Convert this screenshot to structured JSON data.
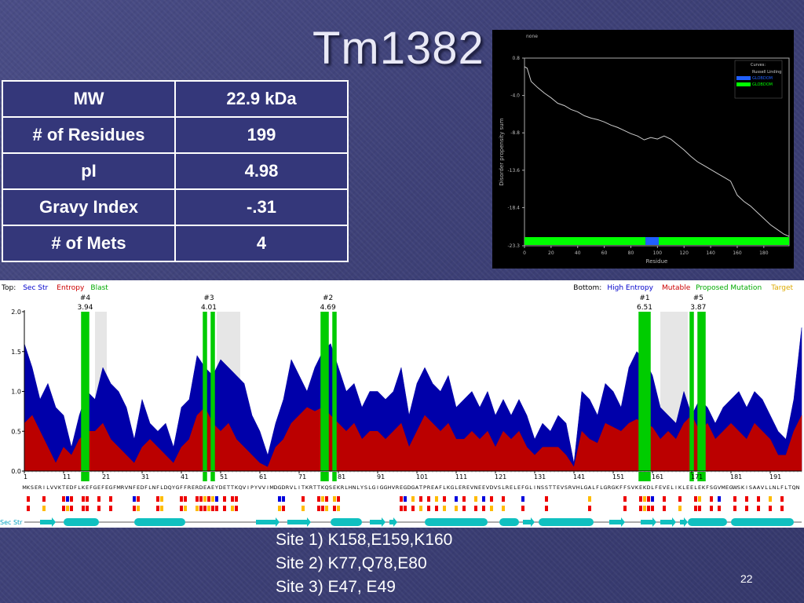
{
  "slide": {
    "title": "Tm1382",
    "page_number": "22",
    "sites": [
      "Site 1) K158,E159,K160",
      "Site 2) K77,Q78,E80",
      "Site 3) E47, E49"
    ]
  },
  "properties_table": [
    {
      "label": "MW",
      "value": "22.9 kDa"
    },
    {
      "label": "# of Residues",
      "value": "199"
    },
    {
      "label": "pI",
      "value": "4.98"
    },
    {
      "label": "Gravy Index",
      "value": "-.31"
    },
    {
      "label": "# of Mets",
      "value": "4"
    }
  ],
  "chart_data": [
    {
      "type": "line",
      "title": "none",
      "xlabel": "Residue",
      "ylabel": "Disorder propensity sum",
      "xlim": [
        0,
        199
      ],
      "ylim": [
        -23.3,
        0.8
      ],
      "x_ticks": [
        0,
        20,
        40,
        60,
        80,
        100,
        120,
        140,
        160,
        180
      ],
      "y_ticks": [
        "0.8",
        "-4.0",
        "-8.8",
        "-13.6",
        "-18.4",
        "-23.3"
      ],
      "legend": {
        "placement": "top-right",
        "title": "Curves:",
        "entries": [
          {
            "name": "Russell Linding",
            "color": "#cccccc"
          },
          {
            "name": "GLOBDOM",
            "color": "#2060ff"
          },
          {
            "name": "GLOBDOM",
            "color": "#00ff00"
          }
        ]
      },
      "series": [
        {
          "name": "Russell Linding",
          "color": "#cccccc",
          "x": [
            0,
            2,
            5,
            10,
            15,
            20,
            25,
            30,
            35,
            40,
            45,
            50,
            55,
            60,
            65,
            70,
            75,
            80,
            85,
            90,
            95,
            100,
            105,
            110,
            115,
            120,
            125,
            130,
            135,
            140,
            145,
            150,
            155,
            160,
            165,
            170,
            175,
            180,
            185,
            190,
            195,
            199
          ],
          "y": [
            -0.3,
            -0.5,
            -2.2,
            -3.0,
            -3.7,
            -4.3,
            -5.0,
            -5.3,
            -5.8,
            -6.1,
            -6.6,
            -6.9,
            -7.1,
            -7.4,
            -7.8,
            -8.1,
            -8.5,
            -8.9,
            -9.2,
            -9.7,
            -9.4,
            -9.6,
            -9.2,
            -9.6,
            -10.3,
            -11.0,
            -11.8,
            -12.5,
            -13.0,
            -13.5,
            -14.0,
            -14.5,
            -15.0,
            -16.8,
            -17.6,
            -18.2,
            -19.0,
            -19.8,
            -20.6,
            -21.2,
            -21.8,
            -22.1
          ]
        }
      ],
      "domain_bar": [
        {
          "from": 0,
          "to": 91,
          "color": "#00ff00"
        },
        {
          "from": 91,
          "to": 101,
          "color": "#2060ff"
        },
        {
          "from": 101,
          "to": 199,
          "color": "#00ff00"
        }
      ]
    },
    {
      "type": "area",
      "x_label": "Residue",
      "xlim": [
        1,
        199
      ],
      "ylim": [
        0.0,
        2.0
      ],
      "y_ticks": [
        "0.0",
        "0.5",
        "1.0",
        "1.5",
        "2.0"
      ],
      "x_ticks": [
        1,
        11,
        21,
        31,
        41,
        51,
        61,
        71,
        81,
        91,
        101,
        111,
        121,
        131,
        141,
        151,
        161,
        171,
        181,
        191
      ],
      "header_left": [
        {
          "text": "Top:",
          "color": "#000000"
        },
        {
          "text": "Sec Str",
          "color": "#0000cc"
        },
        {
          "text": "Entropy",
          "color": "#cc0000"
        },
        {
          "text": "Blast",
          "color": "#00aa00"
        }
      ],
      "header_right": [
        {
          "text": "Bottom:",
          "color": "#000000"
        },
        {
          "text": "High Entropy",
          "color": "#0000cc"
        },
        {
          "text": "Mutable",
          "color": "#cc0000"
        },
        {
          "text": "Proposed Mutation",
          "color": "#00aa00"
        },
        {
          "text": "Target",
          "color": "#ddaa00"
        }
      ],
      "sites": [
        {
          "label": "#4",
          "score": "3.94",
          "residues": [
            16,
            17
          ]
        },
        {
          "label": "#3",
          "score": "4.01",
          "residues": [
            47,
            49
          ]
        },
        {
          "label": "#2",
          "score": "4.69",
          "residues": [
            77,
            78,
            80
          ]
        },
        {
          "label": "#1",
          "score": "6.51",
          "residues": [
            158,
            159,
            160
          ]
        },
        {
          "label": "#5",
          "score": "3.87",
          "residues": [
            171,
            173,
            174
          ]
        }
      ],
      "gray_regions": [
        [
          19,
          22
        ],
        [
          50,
          56
        ],
        [
          163,
          170
        ]
      ],
      "sequence": "MKSERILVVKTEDFLKEFGEFEGFMRVNFEDFLNFLDQYGFFRERDEAEYDETTKQVIPYVVIMDGDRVLITKRTTKQSEKRLHNLYSLGIGGHVREGDGATPREAFLKGLEREVNEEVDVSLRELEFGLINSSTTEVSRVHLGALFLGRGKFFSVKEKDLFEVELIKLEELEKFSGVMEGWSKISAAVLLNLFLTQN",
      "series": [
        {
          "name": "High Entropy",
          "color": "#0000aa",
          "x": [
            1,
            3,
            5,
            7,
            9,
            11,
            13,
            15,
            17,
            19,
            21,
            23,
            25,
            27,
            29,
            31,
            33,
            35,
            37,
            39,
            41,
            43,
            45,
            47,
            49,
            51,
            53,
            55,
            57,
            59,
            61,
            63,
            65,
            67,
            69,
            71,
            73,
            75,
            77,
            79,
            81,
            83,
            85,
            87,
            89,
            91,
            93,
            95,
            97,
            99,
            101,
            103,
            105,
            107,
            109,
            111,
            113,
            115,
            117,
            119,
            121,
            123,
            125,
            127,
            129,
            131,
            133,
            135,
            137,
            139,
            141,
            143,
            145,
            147,
            149,
            151,
            153,
            155,
            157,
            159,
            161,
            163,
            165,
            167,
            169,
            171,
            173,
            175,
            177,
            179,
            181,
            183,
            185,
            187,
            189,
            191,
            193,
            195,
            197,
            199
          ],
          "y": [
            1.6,
            1.3,
            0.9,
            1.1,
            0.8,
            0.7,
            0.3,
            0.7,
            1.0,
            0.9,
            1.3,
            1.1,
            1.0,
            0.8,
            0.4,
            0.9,
            0.6,
            0.5,
            0.6,
            0.3,
            0.8,
            0.9,
            1.45,
            1.3,
            1.2,
            1.4,
            1.3,
            1.2,
            1.1,
            0.7,
            0.5,
            0.2,
            0.6,
            0.9,
            1.4,
            1.2,
            1.0,
            1.3,
            1.5,
            1.6,
            1.3,
            1.0,
            1.1,
            0.8,
            1.0,
            1.0,
            0.9,
            1.0,
            1.3,
            0.7,
            1.1,
            1.3,
            1.1,
            1.0,
            1.2,
            0.8,
            0.9,
            1.0,
            0.8,
            1.0,
            0.7,
            0.9,
            0.7,
            0.9,
            0.7,
            0.4,
            0.6,
            0.5,
            0.7,
            0.6,
            0.1,
            1.0,
            0.9,
            0.7,
            1.1,
            1.0,
            0.8,
            1.3,
            1.5,
            1.4,
            1.2,
            0.8,
            0.7,
            0.6,
            1.0,
            0.7,
            0.9,
            0.8,
            0.6,
            0.8,
            0.9,
            1.0,
            0.8,
            1.0,
            0.9,
            0.7,
            0.5,
            0.4,
            0.9,
            1.8
          ]
        },
        {
          "name": "Entropy",
          "color": "#bb0000",
          "x": [
            1,
            3,
            5,
            7,
            9,
            11,
            13,
            15,
            17,
            19,
            21,
            23,
            25,
            27,
            29,
            31,
            33,
            35,
            37,
            39,
            41,
            43,
            45,
            47,
            49,
            51,
            53,
            55,
            57,
            59,
            61,
            63,
            65,
            67,
            69,
            71,
            73,
            75,
            77,
            79,
            81,
            83,
            85,
            87,
            89,
            91,
            93,
            95,
            97,
            99,
            101,
            103,
            105,
            107,
            109,
            111,
            113,
            115,
            117,
            119,
            121,
            123,
            125,
            127,
            129,
            131,
            133,
            135,
            137,
            139,
            141,
            143,
            145,
            147,
            149,
            151,
            153,
            155,
            157,
            159,
            161,
            163,
            165,
            167,
            169,
            171,
            173,
            175,
            177,
            179,
            181,
            183,
            185,
            187,
            189,
            191,
            193,
            195,
            197,
            199
          ],
          "y": [
            0.6,
            0.7,
            0.5,
            0.3,
            0.1,
            0.3,
            0.2,
            0.4,
            0.5,
            0.5,
            0.6,
            0.4,
            0.3,
            0.2,
            0.1,
            0.3,
            0.4,
            0.3,
            0.2,
            0.1,
            0.3,
            0.4,
            0.7,
            0.8,
            0.6,
            0.5,
            0.6,
            0.4,
            0.3,
            0.2,
            0.1,
            0.05,
            0.3,
            0.4,
            0.6,
            0.7,
            0.8,
            0.75,
            0.8,
            0.7,
            0.6,
            0.5,
            0.6,
            0.4,
            0.5,
            0.5,
            0.4,
            0.5,
            0.6,
            0.3,
            0.5,
            0.7,
            0.6,
            0.5,
            0.6,
            0.4,
            0.4,
            0.5,
            0.4,
            0.5,
            0.3,
            0.5,
            0.4,
            0.5,
            0.3,
            0.2,
            0.3,
            0.3,
            0.3,
            0.2,
            0.05,
            0.5,
            0.4,
            0.35,
            0.6,
            0.55,
            0.5,
            0.6,
            0.65,
            0.6,
            0.55,
            0.4,
            0.5,
            0.4,
            0.6,
            0.7,
            0.5,
            0.6,
            0.4,
            0.5,
            0.6,
            0.5,
            0.4,
            0.6,
            0.5,
            0.4,
            0.2,
            0.2,
            0.5,
            0.7
          ]
        }
      ],
      "sec_str_label": "Sec Str"
    }
  ]
}
